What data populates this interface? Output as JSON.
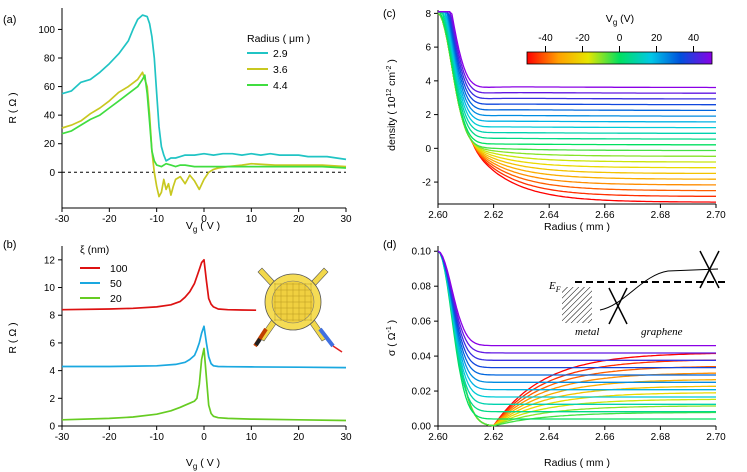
{
  "chart_data": [
    {
      "id": "a",
      "type": "line",
      "panel_label": "(a)",
      "xlabel": "V",
      "xlabel_sub": "g",
      "xlabel_unit": " ( V )",
      "ylabel": "R ( Ω )",
      "xlim": [
        -30,
        30
      ],
      "ylim": [
        -25,
        115
      ],
      "xticks": [
        -30,
        -20,
        -10,
        0,
        10,
        20,
        30
      ],
      "yticks": [
        0,
        20,
        40,
        60,
        80,
        100
      ],
      "legend_title": "Radius ( μm )",
      "reference_line_y": 0,
      "series": [
        {
          "name": "2.9",
          "color": "#20c4c4",
          "x": [
            -30,
            -28,
            -26,
            -24,
            -22,
            -20,
            -18,
            -16,
            -15,
            -14,
            -13,
            -12,
            -11.5,
            -11,
            -10.5,
            -10,
            -9.5,
            -9,
            -8.5,
            -8,
            -7,
            -6,
            -5,
            -4,
            -2,
            0,
            2,
            4,
            6,
            8,
            10,
            12,
            14,
            16,
            18,
            20,
            22,
            24,
            26,
            28,
            30
          ],
          "y": [
            55,
            57,
            63,
            65,
            70,
            76,
            83,
            92,
            100,
            107,
            110,
            109,
            104,
            95,
            80,
            55,
            32,
            18,
            12,
            8,
            10,
            10,
            11,
            12,
            12,
            13,
            12,
            13,
            13,
            12,
            13,
            12,
            13,
            12,
            12,
            12,
            11,
            11,
            11,
            10,
            9
          ]
        },
        {
          "name": "3.6",
          "color": "#c8c820",
          "x": [
            -30,
            -28,
            -26,
            -24,
            -22,
            -20,
            -18,
            -16,
            -14,
            -13,
            -12,
            -11.5,
            -11,
            -10.5,
            -10,
            -9.5,
            -9,
            -8.5,
            -8,
            -7.5,
            -7,
            -6.5,
            -6,
            -5,
            -4,
            -3,
            -2,
            -1,
            0,
            1,
            2,
            3,
            5,
            8,
            10,
            15,
            20,
            25,
            30
          ],
          "y": [
            31,
            33,
            36,
            41,
            45,
            50,
            56,
            60,
            65,
            70,
            60,
            40,
            15,
            0,
            -10,
            -17,
            -14,
            -5,
            -12,
            -8,
            -16,
            -10,
            -5,
            -3,
            -8,
            -2,
            -6,
            -12,
            -5,
            0,
            2,
            3,
            4,
            5,
            6,
            5,
            5,
            5,
            4
          ]
        },
        {
          "name": "4.4",
          "color": "#40dd40",
          "x": [
            -30,
            -28,
            -26,
            -24,
            -22,
            -20,
            -18,
            -16,
            -14,
            -13,
            -12.5,
            -12,
            -11.5,
            -11,
            -10.5,
            -10,
            -9,
            -8,
            -7,
            -6,
            -5,
            -4,
            -2,
            0,
            5,
            10,
            15,
            20,
            25,
            30
          ],
          "y": [
            27,
            29,
            33,
            37,
            40,
            45,
            50,
            55,
            60,
            65,
            68,
            55,
            35,
            15,
            8,
            5,
            4,
            6,
            5,
            4,
            5,
            5,
            4,
            4,
            4,
            4,
            4,
            4,
            4,
            3
          ]
        }
      ]
    },
    {
      "id": "b",
      "type": "line",
      "panel_label": "(b)",
      "xlabel": "V",
      "xlabel_sub": "g",
      "xlabel_unit": " ( V )",
      "ylabel": "R ( Ω )",
      "xlim": [
        -30,
        30
      ],
      "ylim": [
        0,
        13
      ],
      "xticks": [
        -30,
        -20,
        -10,
        0,
        10,
        20,
        30
      ],
      "yticks": [
        0,
        2,
        4,
        6,
        8,
        10,
        12
      ],
      "legend_title": "ξ  (nm)",
      "inset": "Device schematic: circular graphene disk with four leads",
      "series": [
        {
          "name": "100",
          "color": "#dd1111",
          "x": [
            -30,
            -20,
            -15,
            -10,
            -7,
            -5,
            -4,
            -3,
            -2,
            -1.5,
            -1,
            -0.5,
            0,
            0.5,
            1,
            1.5,
            2,
            3,
            5,
            8,
            11
          ],
          "y": [
            8.4,
            8.45,
            8.5,
            8.6,
            8.75,
            9.0,
            9.3,
            9.7,
            10.3,
            10.8,
            11.3,
            11.8,
            12.0,
            10.5,
            9.2,
            8.8,
            8.6,
            8.45,
            8.4,
            8.38,
            8.36
          ]
        },
        {
          "name": "50",
          "color": "#1aa8e0",
          "x": [
            -30,
            -20,
            -10,
            -6,
            -4,
            -3,
            -2,
            -1.5,
            -1,
            -0.5,
            0,
            0.5,
            1,
            1.5,
            2,
            3,
            5,
            10,
            20,
            30
          ],
          "y": [
            4.3,
            4.3,
            4.35,
            4.45,
            4.6,
            4.8,
            5.1,
            5.5,
            6.0,
            6.7,
            7.2,
            6.0,
            5.0,
            4.5,
            4.35,
            4.3,
            4.28,
            4.27,
            4.25,
            4.22
          ]
        },
        {
          "name": "20",
          "color": "#66cc22",
          "x": [
            -30,
            -20,
            -15,
            -10,
            -7,
            -5,
            -4,
            -3,
            -2,
            -1.5,
            -1,
            -0.5,
            0,
            0.5,
            1,
            1.5,
            2,
            3,
            5,
            10,
            20,
            30
          ],
          "y": [
            0.45,
            0.55,
            0.65,
            0.85,
            1.1,
            1.35,
            1.5,
            1.65,
            1.8,
            2.0,
            3.0,
            4.8,
            5.6,
            3.5,
            1.5,
            0.9,
            0.7,
            0.6,
            0.55,
            0.5,
            0.45,
            0.4
          ]
        }
      ]
    },
    {
      "id": "c",
      "type": "line",
      "panel_label": "(c)",
      "xlabel": "Radius ( mm )",
      "ylabel": "density ( 10",
      "ylabel_sup1": "12",
      "ylabel_mid": " cm",
      "ylabel_sup2": "-2",
      "ylabel_end": " )",
      "xlim": [
        2.6,
        2.7
      ],
      "ylim": [
        -3.3,
        8.2
      ],
      "xticks": [
        2.6,
        2.62,
        2.64,
        2.66,
        2.68,
        2.7
      ],
      "xtick_labels": [
        "2.60",
        "2.62",
        "2.64",
        "2.66",
        "2.68",
        "2.70"
      ],
      "yticks": [
        -2,
        0,
        2,
        4,
        6,
        8
      ],
      "colorbar": {
        "title": "V",
        "title_sub": "g",
        "title_unit": " (V)",
        "range": [
          -50,
          50
        ],
        "ticks": [
          -40,
          -20,
          0,
          20,
          40
        ]
      },
      "family": {
        "param": "Vg",
        "Vg_values": [
          -50,
          -45,
          -40,
          -35,
          -30,
          -25,
          -20,
          -15,
          -10,
          -5,
          0,
          5,
          10,
          15,
          20,
          25,
          30,
          35,
          40,
          45,
          50
        ],
        "edge_value_at_2_60": 8.0,
        "asymptote_at_2_70_for_Vg_-50": -3.2,
        "asymptote_at_2_70_for_Vg_+50": 3.6
      }
    },
    {
      "id": "d",
      "type": "line",
      "panel_label": "(d)",
      "xlabel": "Radius ( mm )",
      "ylabel": "σ ( Ω",
      "ylabel_sup": "-1",
      "ylabel_end": " )",
      "xlim": [
        2.6,
        2.7
      ],
      "ylim": [
        0,
        0.103
      ],
      "xticks": [
        2.6,
        2.62,
        2.64,
        2.66,
        2.68,
        2.7
      ],
      "xtick_labels": [
        "2.60",
        "2.62",
        "2.64",
        "2.66",
        "2.68",
        "2.70"
      ],
      "yticks": [
        0,
        0.02,
        0.04,
        0.06,
        0.08,
        0.1
      ],
      "ytick_labels": [
        "0.00",
        "0.02",
        "0.04",
        "0.06",
        "0.08",
        "0.10"
      ],
      "inset": {
        "fermi_label": "E",
        "fermi_sub": "F",
        "metal_label": "metal",
        "graphene_label": "graphene"
      },
      "family": {
        "param": "Vg",
        "Vg_values": [
          -50,
          -45,
          -40,
          -35,
          -30,
          -25,
          -20,
          -15,
          -10,
          -5,
          0,
          5,
          10,
          15,
          20,
          25,
          30,
          35,
          40,
          45,
          50
        ],
        "edge_value_at_2_60": 0.1,
        "asymptote_at_2_70_for_Vg_-50": 0.042,
        "asymptote_at_2_70_for_Vg_+50": 0.046
      }
    }
  ]
}
